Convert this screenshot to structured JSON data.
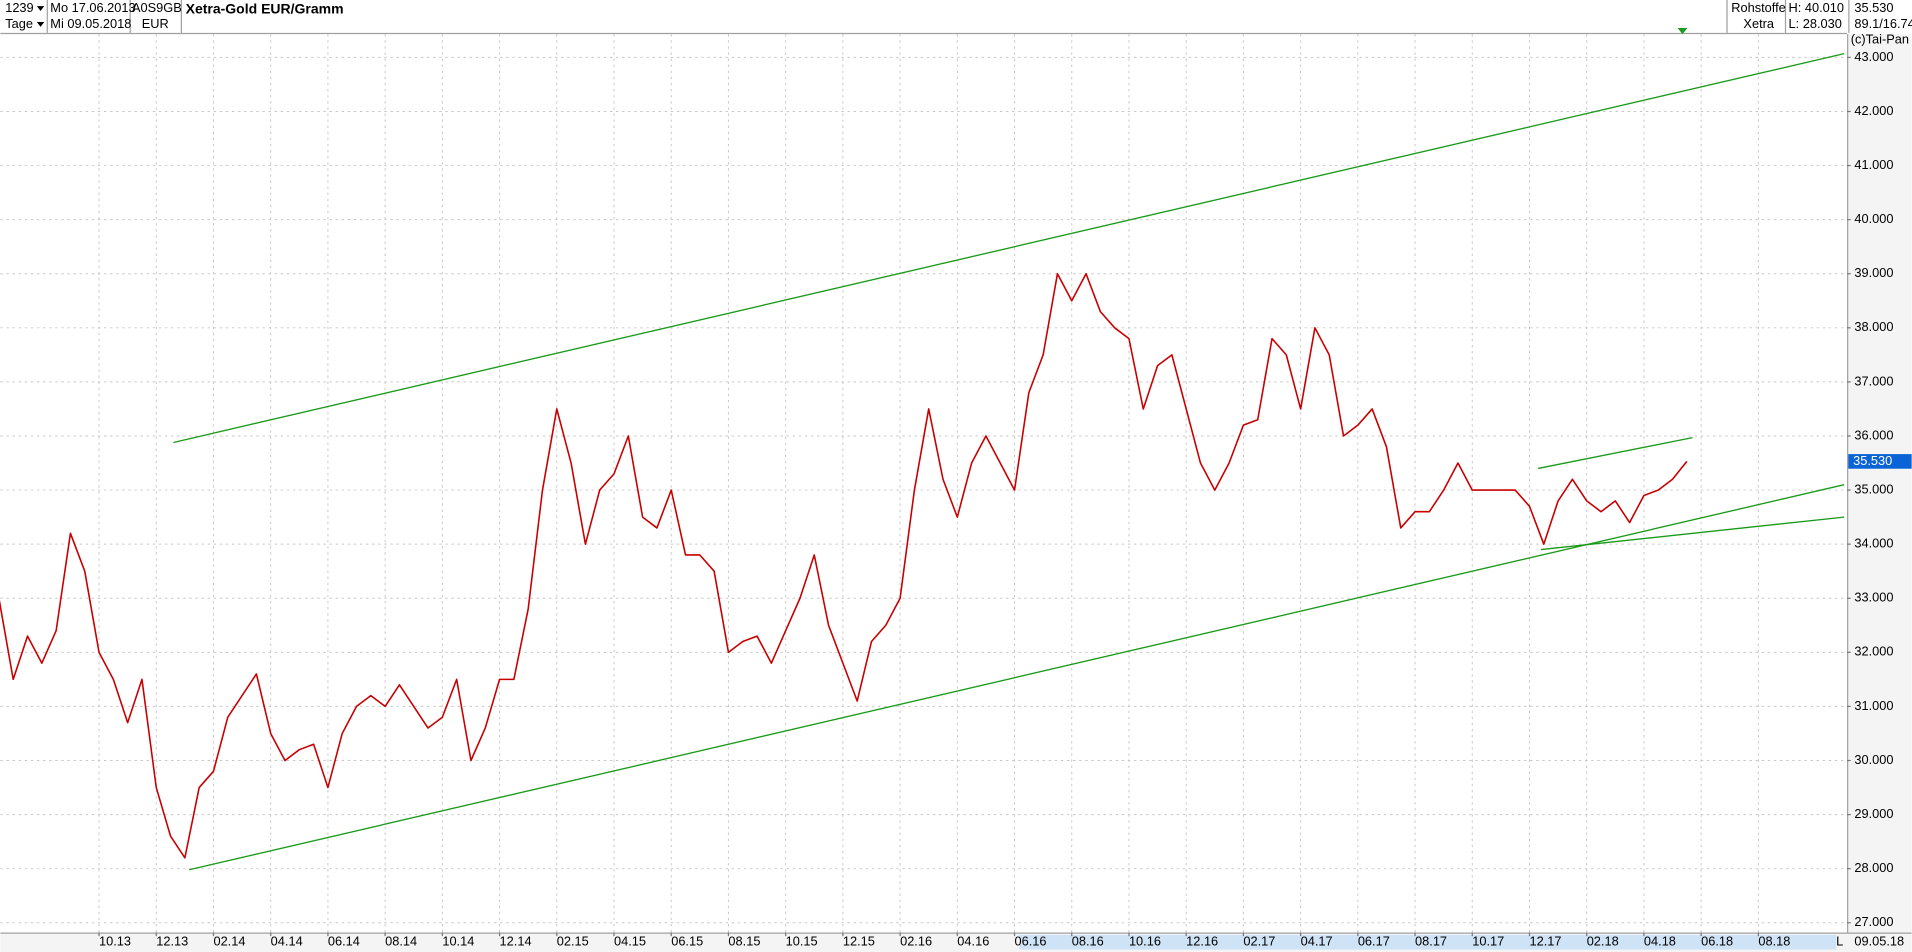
{
  "header": {
    "count": "1239",
    "period": "Tage",
    "from": "Mo 17.06.2013",
    "to": "Mi 09.05.2018",
    "isin": "A0S9GB",
    "currency": "EUR",
    "group": "Rohstoffe",
    "exchange": "Xetra",
    "high": "H: 40.010",
    "low": "L: 28.030",
    "last": "35.530",
    "ratio": "89.1/16.74",
    "copyright": "(c)Tai-Pan",
    "end_date": "09.05.18",
    "scale_mode": "L"
  },
  "chart_data": {
    "type": "line",
    "title": "Xetra-Gold EUR/Gramm",
    "x": [
      5.5,
      6,
      6.5,
      7,
      7.5,
      8,
      8.5,
      9,
      9.5,
      10,
      10.5,
      11,
      11.5,
      12,
      12.5,
      13,
      13.5,
      14,
      14.5,
      15,
      15.5,
      16,
      16.5,
      17,
      17.5,
      18,
      18.5,
      19,
      19.5,
      20,
      20.5,
      21,
      21.5,
      22,
      22.5,
      23,
      23.5,
      24,
      24.5,
      25,
      25.5,
      26,
      26.5,
      27,
      27.5,
      28,
      28.5,
      29,
      29.5,
      30,
      30.5,
      31,
      31.5,
      32,
      32.5,
      33,
      33.5,
      34,
      34.5,
      35,
      35.5,
      36,
      36.5,
      37,
      37.5,
      38,
      38.5,
      39,
      39.5,
      40,
      40.5,
      41,
      41.5,
      42,
      42.5,
      43,
      43.5,
      44,
      44.5,
      45,
      45.5,
      46,
      46.5,
      47,
      47.5,
      48,
      48.5,
      49,
      49.5,
      50,
      50.5,
      51,
      51.5,
      52,
      52.5,
      53,
      53.5,
      54,
      54.5,
      55,
      55.5,
      56,
      56.5,
      57,
      57.5,
      58,
      58.5,
      59,
      59.5,
      60,
      60.5,
      61,
      61.5,
      62,
      62.5,
      63,
      63.5,
      64,
      64.5
    ],
    "series": [
      {
        "name": "Xetra-Gold EUR/Gramm",
        "color": "#c80000",
        "values": [
          33.0,
          31.5,
          32.3,
          31.8,
          32.4,
          34.2,
          33.5,
          32.0,
          31.5,
          30.7,
          31.5,
          29.5,
          28.6,
          28.2,
          29.5,
          29.8,
          30.8,
          31.2,
          31.6,
          30.5,
          30.0,
          30.2,
          30.3,
          29.5,
          30.5,
          31.0,
          31.2,
          31.0,
          31.4,
          31.0,
          30.6,
          30.8,
          31.5,
          30.0,
          30.6,
          31.5,
          31.5,
          32.8,
          35.0,
          36.5,
          35.5,
          34.0,
          35.0,
          35.3,
          36.0,
          34.5,
          34.3,
          35.0,
          33.8,
          33.8,
          33.5,
          32.0,
          32.2,
          32.3,
          31.8,
          32.4,
          33.0,
          33.8,
          32.5,
          31.8,
          31.1,
          32.2,
          32.5,
          33.0,
          35.0,
          36.5,
          35.2,
          34.5,
          35.5,
          36.0,
          35.5,
          35.0,
          36.8,
          37.5,
          39.0,
          38.5,
          39.0,
          38.3,
          38.0,
          37.8,
          36.5,
          37.3,
          37.5,
          36.5,
          35.5,
          35.0,
          35.5,
          36.2,
          36.3,
          37.8,
          37.5,
          36.5,
          38.0,
          37.5,
          36.0,
          36.2,
          36.5,
          35.8,
          34.3,
          34.6,
          34.6,
          35.0,
          35.5,
          35.0,
          35.0,
          35.0,
          35.0,
          34.7,
          34.0,
          34.8,
          35.2,
          34.8,
          34.6,
          34.8,
          34.4,
          34.9,
          35.0,
          35.2,
          35.53
        ]
      }
    ],
    "trendlines": [
      {
        "x": [
          11.6,
          70.0
        ],
        "values": [
          35.88,
          43.07
        ],
        "color": "#1a9a1a"
      },
      {
        "x": [
          12.15,
          70.0
        ],
        "values": [
          27.98,
          35.1
        ],
        "color": "#1a9a1a"
      },
      {
        "x": [
          59.3,
          64.7
        ],
        "values": [
          35.4,
          35.97
        ],
        "color": "#1a9a1a"
      },
      {
        "x": [
          59.4,
          70.0
        ],
        "values": [
          33.9,
          34.5
        ],
        "color": "#1a9a1a"
      }
    ],
    "price_marker": {
      "value": 35.53,
      "label": "35.530",
      "color": "#0a64d6"
    },
    "xlim": [
      5.55,
      70.1
    ],
    "ylim": [
      26.82,
      43.43
    ],
    "xticks": [
      {
        "value": 9,
        "label": "10.13"
      },
      {
        "value": 11,
        "label": "12.13"
      },
      {
        "value": 13,
        "label": "02.14"
      },
      {
        "value": 15,
        "label": "04.14"
      },
      {
        "value": 17,
        "label": "06.14"
      },
      {
        "value": 19,
        "label": "08.14"
      },
      {
        "value": 21,
        "label": "10.14"
      },
      {
        "value": 23,
        "label": "12.14"
      },
      {
        "value": 25,
        "label": "02.15"
      },
      {
        "value": 27,
        "label": "04.15"
      },
      {
        "value": 29,
        "label": "06.15"
      },
      {
        "value": 31,
        "label": "08.15"
      },
      {
        "value": 33,
        "label": "10.15"
      },
      {
        "value": 35,
        "label": "12.15"
      },
      {
        "value": 37,
        "label": "02.16"
      },
      {
        "value": 39,
        "label": "04.16"
      },
      {
        "value": 41,
        "label": "06.16"
      },
      {
        "value": 43,
        "label": "08.16"
      },
      {
        "value": 45,
        "label": "10.16"
      },
      {
        "value": 47,
        "label": "12.16"
      },
      {
        "value": 49,
        "label": "02.17"
      },
      {
        "value": 51,
        "label": "04.17"
      },
      {
        "value": 53,
        "label": "06.17"
      },
      {
        "value": 55,
        "label": "08.17"
      },
      {
        "value": 57,
        "label": "10.17"
      },
      {
        "value": 59,
        "label": "12.17"
      },
      {
        "value": 61,
        "label": "02.18"
      },
      {
        "value": 63,
        "label": "04.18"
      },
      {
        "value": 65,
        "label": "06.18"
      },
      {
        "value": 67,
        "label": "08.18"
      }
    ],
    "yticks": [
      {
        "value": 27,
        "label": "27.000"
      },
      {
        "value": 28,
        "label": "28.000"
      },
      {
        "value": 29,
        "label": "29.000"
      },
      {
        "value": 30,
        "label": "30.000"
      },
      {
        "value": 31,
        "label": "31.000"
      },
      {
        "value": 32,
        "label": "32.000"
      },
      {
        "value": 33,
        "label": "33.000"
      },
      {
        "value": 34,
        "label": "34.000"
      },
      {
        "value": 35,
        "label": "35.000"
      },
      {
        "value": 36,
        "label": "36.000"
      },
      {
        "value": 37,
        "label": "37.000"
      },
      {
        "value": 38,
        "label": "38.000"
      },
      {
        "value": 39,
        "label": "39.000"
      },
      {
        "value": 40,
        "label": "40.000"
      },
      {
        "value": 41,
        "label": "41.000"
      },
      {
        "value": 42,
        "label": "42.000"
      },
      {
        "value": 43,
        "label": "43.000"
      }
    ],
    "grid": true
  }
}
